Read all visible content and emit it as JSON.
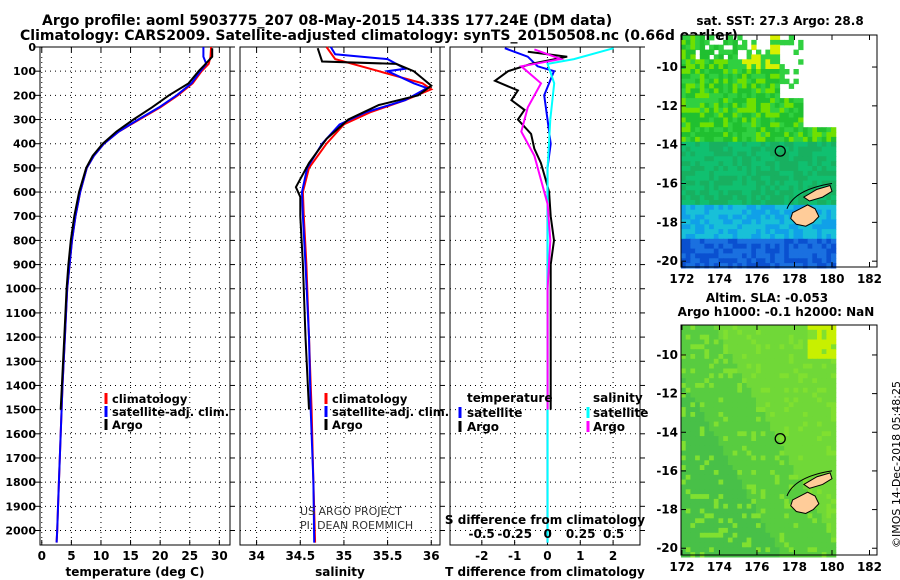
{
  "title_line1": "Argo profile: aoml 5903775_207 08-May-2015 14.33S 177.24E (DM data)",
  "title_line2": "Climatology: CARS2009. Satellite-adjusted climatology: synTS_20150508.nc (0.66d earlier)",
  "credit": "©IMOS 14-Dec-2018 05:48:25",
  "project_line1": "US ARGO PROJECT",
  "project_line2": "PI: DEAN ROEMMICH",
  "colors": {
    "climatology": "#ff0000",
    "satellite": "#0000ff",
    "argo": "#000000",
    "sal_satellite": "#00ffff",
    "sal_argo": "#ff00ff"
  },
  "chart_data": [
    {
      "type": "line",
      "xlabel": "temperature (deg C)",
      "xticks": [
        "0",
        "5",
        "10",
        "15",
        "20",
        "25",
        "30"
      ],
      "xtick_values": [
        0,
        5,
        10,
        15,
        20,
        25,
        30
      ],
      "yticks": [
        "0",
        "100",
        "200",
        "300",
        "400",
        "500",
        "600",
        "700",
        "800",
        "900",
        "1000",
        "1100",
        "1200",
        "1300",
        "1400",
        "1500",
        "1600",
        "1700",
        "1800",
        "1900",
        "2000"
      ],
      "ylim": [
        0,
        2060
      ],
      "xlim": [
        -0.3,
        31.8
      ],
      "legend": [
        "climatology",
        "satellite-adj. clim.",
        "Argo"
      ],
      "series": [
        {
          "name": "climatology",
          "color": "#ff0000",
          "points": [
            [
              28.6,
              0
            ],
            [
              28.5,
              40
            ],
            [
              28.2,
              70
            ],
            [
              27,
              100
            ],
            [
              25.5,
              150
            ],
            [
              23,
              200
            ],
            [
              20,
              250
            ],
            [
              16.5,
              300
            ],
            [
              13,
              350
            ],
            [
              10.5,
              400
            ],
            [
              8.8,
              450
            ],
            [
              7.6,
              500
            ],
            [
              6.5,
              600
            ],
            [
              5.7,
              700
            ],
            [
              5.1,
              800
            ],
            [
              4.7,
              900
            ],
            [
              4.3,
              1000
            ],
            [
              3.9,
              1200
            ],
            [
              3.5,
              1400
            ],
            [
              3.2,
              1600
            ],
            [
              2.9,
              1800
            ],
            [
              2.6,
              2000
            ],
            [
              2.5,
              2050
            ]
          ]
        },
        {
          "name": "satellite-adj. clim.",
          "color": "#0000ff",
          "points": [
            [
              27.3,
              0
            ],
            [
              27.3,
              40
            ],
            [
              27.8,
              70
            ],
            [
              26.8,
              100
            ],
            [
              25.3,
              150
            ],
            [
              22.8,
              200
            ],
            [
              19.8,
              250
            ],
            [
              16.3,
              300
            ],
            [
              13,
              350
            ],
            [
              10.5,
              400
            ],
            [
              8.8,
              450
            ],
            [
              7.6,
              500
            ],
            [
              6.5,
              600
            ],
            [
              5.7,
              700
            ],
            [
              5.1,
              800
            ],
            [
              4.7,
              900
            ],
            [
              4.3,
              1000
            ],
            [
              3.9,
              1200
            ],
            [
              3.5,
              1400
            ],
            [
              3.2,
              1600
            ],
            [
              2.9,
              1800
            ],
            [
              2.6,
              2000
            ],
            [
              2.5,
              2050
            ]
          ]
        },
        {
          "name": "Argo",
          "color": "#000000",
          "points": [
            [
              28.8,
              5
            ],
            [
              28.8,
              40
            ],
            [
              27.5,
              75
            ],
            [
              26.5,
              100
            ],
            [
              24.8,
              150
            ],
            [
              21.5,
              200
            ],
            [
              18.6,
              250
            ],
            [
              15.5,
              300
            ],
            [
              12.6,
              350
            ],
            [
              10.3,
              400
            ],
            [
              8.6,
              450
            ],
            [
              7.5,
              500
            ],
            [
              6.3,
              600
            ],
            [
              5.5,
              700
            ],
            [
              4.9,
              800
            ],
            [
              4.5,
              900
            ],
            [
              4.2,
              1000
            ],
            [
              3.8,
              1200
            ],
            [
              3.4,
              1400
            ],
            [
              3.2,
              1500
            ]
          ]
        }
      ]
    },
    {
      "type": "line",
      "xlabel": "salinity",
      "xticks": [
        "34",
        "34.5",
        "35",
        "35.5",
        "36"
      ],
      "xtick_values": [
        34,
        34.5,
        35,
        35.5,
        36
      ],
      "ylim": [
        0,
        2060
      ],
      "xlim": [
        33.81,
        36.1
      ],
      "legend": [
        "climatology",
        "satellite-adj. clim.",
        "Argo"
      ],
      "series": [
        {
          "name": "climatology",
          "color": "#ff0000",
          "points": [
            [
              34.8,
              0
            ],
            [
              34.9,
              50
            ],
            [
              35.4,
              100
            ],
            [
              35.9,
              150
            ],
            [
              36.0,
              175
            ],
            [
              35.7,
              220
            ],
            [
              35.3,
              270
            ],
            [
              35.0,
              320
            ],
            [
              34.8,
              400
            ],
            [
              34.6,
              500
            ],
            [
              34.53,
              600
            ],
            [
              34.54,
              700
            ],
            [
              34.57,
              900
            ],
            [
              34.6,
              1200
            ],
            [
              34.63,
              1500
            ],
            [
              34.65,
              1800
            ],
            [
              34.67,
              2050
            ]
          ]
        },
        {
          "name": "satellite-adj. clim.",
          "color": "#0000ff",
          "points": [
            [
              34.85,
              0
            ],
            [
              34.9,
              30
            ],
            [
              35.5,
              50
            ],
            [
              35.6,
              70
            ],
            [
              35.7,
              90
            ],
            [
              35.5,
              100
            ],
            [
              35.8,
              150
            ],
            [
              35.95,
              170
            ],
            [
              35.7,
              220
            ],
            [
              35.25,
              270
            ],
            [
              34.95,
              320
            ],
            [
              34.75,
              400
            ],
            [
              34.58,
              500
            ],
            [
              34.52,
              600
            ],
            [
              34.53,
              700
            ],
            [
              34.56,
              900
            ],
            [
              34.6,
              1200
            ],
            [
              34.62,
              1500
            ],
            [
              34.65,
              1800
            ],
            [
              34.66,
              2050
            ]
          ]
        },
        {
          "name": "Argo",
          "color": "#000000",
          "points": [
            [
              34.7,
              5
            ],
            [
              34.75,
              60
            ],
            [
              35.6,
              70
            ],
            [
              35.8,
              100
            ],
            [
              35.9,
              130
            ],
            [
              36.0,
              160
            ],
            [
              35.85,
              200
            ],
            [
              35.4,
              240
            ],
            [
              35.05,
              300
            ],
            [
              34.8,
              380
            ],
            [
              34.6,
              480
            ],
            [
              34.45,
              580
            ],
            [
              34.5,
              620
            ],
            [
              34.5,
              700
            ],
            [
              34.53,
              900
            ],
            [
              34.56,
              1200
            ],
            [
              34.6,
              1500
            ]
          ]
        }
      ]
    },
    {
      "type": "line",
      "xlabel": "T difference from climatology",
      "xticks": [
        "-2",
        "-1",
        "0",
        "1",
        "2"
      ],
      "xtick_values": [
        -2,
        -1,
        0,
        1,
        2
      ],
      "xlim": [
        -2.97,
        2.82
      ],
      "s_label": "S difference from climatology",
      "s_xticks": [
        "-0.5",
        "-0.25",
        "0",
        "0.25",
        "0.5"
      ],
      "s_xtick_values": [
        -0.5,
        -0.25,
        0,
        0.25,
        0.5
      ],
      "s_xlim": [
        -0.74,
        0.7
      ],
      "ylim": [
        0,
        2060
      ],
      "legend_temperature": {
        "title": "temperature",
        "items": [
          "satellite",
          "Argo"
        ]
      },
      "legend_salinity": {
        "title": "salinity",
        "items": [
          "satellite",
          "Argo"
        ]
      },
      "series": [
        {
          "name": "T satellite",
          "axis": "T",
          "color": "#0000ff",
          "points": [
            [
              -1.3,
              5
            ],
            [
              -0.6,
              40
            ],
            [
              -0.3,
              80
            ],
            [
              0.2,
              100
            ],
            [
              -0.1,
              200
            ],
            [
              0,
              300
            ],
            [
              0.1,
              400
            ],
            [
              0,
              500
            ],
            [
              0,
              700
            ],
            [
              0,
              1000
            ],
            [
              0,
              1500
            ],
            [
              0,
              2050
            ]
          ]
        },
        {
          "name": "T Argo",
          "axis": "T",
          "color": "#000000",
          "points": [
            [
              -0.6,
              20
            ],
            [
              0.6,
              40
            ],
            [
              -0.5,
              70
            ],
            [
              -1.2,
              100
            ],
            [
              -1.6,
              140
            ],
            [
              -0.9,
              180
            ],
            [
              -1.1,
              220
            ],
            [
              -0.7,
              260
            ],
            [
              -0.9,
              300
            ],
            [
              -0.5,
              360
            ],
            [
              -0.4,
              420
            ],
            [
              -0.2,
              480
            ],
            [
              -0.05,
              550
            ],
            [
              0.05,
              600
            ],
            [
              0.1,
              700
            ],
            [
              0.2,
              800
            ],
            [
              0.1,
              900
            ],
            [
              0.1,
              1000
            ],
            [
              0.1,
              1200
            ],
            [
              0.1,
              1500
            ]
          ]
        },
        {
          "name": "S satellite",
          "axis": "S",
          "color": "#00ffff",
          "points": [
            [
              0.5,
              5
            ],
            [
              0.2,
              50
            ],
            [
              0,
              70
            ],
            [
              0.05,
              150
            ],
            [
              0.02,
              300
            ],
            [
              0,
              500
            ],
            [
              0,
              700
            ],
            [
              0,
              1000
            ],
            [
              0,
              1500
            ],
            [
              0,
              2050
            ]
          ]
        },
        {
          "name": "S Argo",
          "axis": "S",
          "color": "#ff00ff",
          "points": [
            [
              -0.1,
              10
            ],
            [
              0.1,
              50
            ],
            [
              -0.2,
              80
            ],
            [
              -0.05,
              150
            ],
            [
              -0.15,
              250
            ],
            [
              -0.2,
              350
            ],
            [
              -0.1,
              450
            ],
            [
              -0.05,
              550
            ],
            [
              0,
              650
            ],
            [
              0.02,
              800
            ],
            [
              0,
              1000
            ],
            [
              0,
              1500
            ]
          ]
        }
      ]
    },
    {
      "type": "heatmap",
      "title": "sat. SST: 27.3 Argo: 28.8",
      "xticks": [
        "172",
        "174",
        "176",
        "178",
        "180",
        "182"
      ],
      "yticks": [
        "-10",
        "-12",
        "-14",
        "-16",
        "-18",
        "-20"
      ],
      "argo_position": [
        177.24,
        -14.33
      ]
    },
    {
      "type": "heatmap",
      "title_line1": "Altim. SLA: -0.053",
      "title_line2": "Argo h1000: -0.1 h2000: NaN",
      "xticks": [
        "172",
        "174",
        "176",
        "178",
        "180",
        "182"
      ],
      "yticks": [
        "-10",
        "-12",
        "-14",
        "-16",
        "-18",
        "-20"
      ],
      "argo_position": [
        177.24,
        -14.33
      ]
    }
  ]
}
